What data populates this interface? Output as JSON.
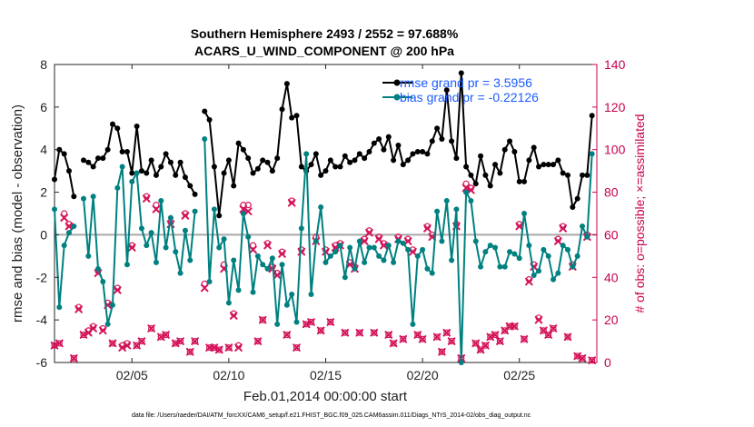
{
  "chart_data": {
    "type": "line",
    "title": [
      "Southern Hemisphere 2493 / 2552 = 97.688%",
      "ACARS_U_WIND_COMPONENT @ 200 hPa"
    ],
    "xlabel": "Feb.01,2014 00:00:00 start",
    "ylabel": "rmse and bias (model - observation)",
    "ylabel_right": "# of obs: o=possible; ×=assimilated",
    "footnote": "data file: /Users/raeder/DAI/ATM_forcXX/CAM6_setup/f.e21.FHIST_BGC.f09_025.CAM6assim.011/Diags_NTrS_2014-02/obs_diag_output.nc",
    "xlim": [
      1,
      29
    ],
    "ylim": [
      -6,
      8
    ],
    "ylim_right": [
      0,
      140
    ],
    "x_ticks": [
      5,
      10,
      15,
      20,
      25
    ],
    "x_tick_labels": [
      "02/05",
      "02/10",
      "02/15",
      "02/20",
      "02/25"
    ],
    "y_ticks": [
      -6,
      -4,
      -2,
      0,
      2,
      4,
      6,
      8
    ],
    "y_tick_labels": [
      "-6",
      "-4",
      "-2",
      "0",
      "2",
      "4",
      "6",
      "8"
    ],
    "y_ticks_right": [
      0,
      20,
      40,
      60,
      80,
      100,
      120,
      140
    ],
    "y_tick_labels_right": [
      "0",
      "20",
      "40",
      "60",
      "80",
      "100",
      "120",
      "140"
    ],
    "grid": false,
    "legend_position": "top-right",
    "colors": {
      "rmse": "#000000",
      "bias": "#008080",
      "obs": "#d4145a",
      "zero_line": "#a8a8a8",
      "legend_text": "#1a5cff",
      "right_axis": "#c8004f"
    },
    "series": [
      {
        "name": "rmse grand pr = 3.5956",
        "axis": "left",
        "x": [
          1.0,
          1.25,
          1.5,
          1.75,
          2.0,
          2.25,
          2.5,
          2.75,
          3.0,
          3.25,
          3.5,
          3.75,
          4.0,
          4.25,
          4.5,
          4.75,
          5.0,
          5.25,
          5.5,
          5.75,
          6.0,
          6.25,
          6.5,
          6.75,
          7.0,
          7.25,
          7.5,
          7.75,
          8.0,
          8.25,
          8.5,
          8.75,
          9.0,
          9.25,
          9.5,
          9.75,
          10.0,
          10.25,
          10.5,
          10.75,
          11.0,
          11.25,
          11.5,
          11.75,
          12.0,
          12.25,
          12.5,
          12.75,
          13.0,
          13.25,
          13.5,
          13.75,
          14.0,
          14.25,
          14.5,
          14.75,
          15.0,
          15.25,
          15.5,
          15.75,
          16.0,
          16.25,
          16.5,
          16.75,
          17.0,
          17.25,
          17.5,
          17.75,
          18.0,
          18.25,
          18.5,
          18.75,
          19.0,
          19.25,
          19.5,
          19.75,
          20.0,
          20.25,
          20.5,
          20.75,
          21.0,
          21.25,
          21.5,
          21.75,
          22.0,
          22.25,
          22.5,
          22.75,
          23.0,
          23.25,
          23.5,
          23.75,
          24.0,
          24.25,
          24.5,
          24.75,
          25.0,
          25.25,
          25.5,
          25.75,
          26.0,
          26.25,
          26.5,
          26.75,
          27.0,
          27.25,
          27.5,
          27.75,
          28.0,
          28.25,
          28.5,
          28.75
        ],
        "values": [
          2.6,
          4.0,
          3.8,
          3.0,
          1.8,
          null,
          3.5,
          3.4,
          3.2,
          3.6,
          3.6,
          4.0,
          5.2,
          5.0,
          3.9,
          3.9,
          2.9,
          5.1,
          3.0,
          2.9,
          3.5,
          2.8,
          3.2,
          3.8,
          3.4,
          2.8,
          3.4,
          2.7,
          2.3,
          1.9,
          null,
          5.8,
          5.4,
          3.2,
          0.9,
          2.9,
          3.5,
          2.3,
          4.3,
          4.0,
          3.6,
          2.9,
          3.1,
          3.5,
          3.4,
          3.0,
          3.6,
          5.9,
          7.1,
          5.5,
          5.6,
          3.2,
          3.0,
          3.3,
          3.8,
          2.8,
          3.0,
          3.5,
          3.2,
          3.2,
          3.7,
          3.4,
          3.5,
          3.8,
          3.6,
          3.9,
          4.3,
          4.5,
          4.0,
          4.6,
          3.5,
          4.2,
          3.3,
          3.5,
          3.8,
          3.9,
          3.9,
          3.8,
          4.4,
          5.0,
          4.5,
          6.8,
          4.4,
          3.6,
          7.6,
          3.2,
          2.8,
          2.4,
          3.7,
          2.8,
          2.3,
          3.3,
          2.9,
          4.0,
          4.4,
          3.9,
          2.5,
          2.5,
          3.5,
          4.1,
          3.2,
          3.3,
          3.3,
          3.3,
          3.5,
          2.9,
          2.8,
          1.3,
          1.7,
          2.8,
          2.8,
          5.6
        ]
      },
      {
        "name": "bias grand pr = -0.22126",
        "axis": "left",
        "x": [
          1.0,
          1.25,
          1.5,
          1.75,
          2.0,
          2.25,
          2.5,
          2.75,
          3.0,
          3.25,
          3.5,
          3.75,
          4.0,
          4.25,
          4.5,
          4.75,
          5.0,
          5.25,
          5.5,
          5.75,
          6.0,
          6.25,
          6.5,
          6.75,
          7.0,
          7.25,
          7.5,
          7.75,
          8.0,
          8.25,
          8.5,
          8.75,
          9.0,
          9.25,
          9.5,
          9.75,
          10.0,
          10.25,
          10.5,
          10.75,
          11.0,
          11.25,
          11.5,
          11.75,
          12.0,
          12.25,
          12.5,
          12.75,
          13.0,
          13.25,
          13.5,
          13.75,
          14.0,
          14.25,
          14.5,
          14.75,
          15.0,
          15.25,
          15.5,
          15.75,
          16.0,
          16.25,
          16.5,
          16.75,
          17.0,
          17.25,
          17.5,
          17.75,
          18.0,
          18.25,
          18.5,
          18.75,
          19.0,
          19.25,
          19.5,
          19.75,
          20.0,
          20.25,
          20.5,
          20.75,
          21.0,
          21.25,
          21.5,
          21.75,
          22.0,
          22.25,
          22.5,
          22.75,
          23.0,
          23.25,
          23.5,
          23.75,
          24.0,
          24.25,
          24.5,
          24.75,
          25.0,
          25.25,
          25.5,
          25.75,
          26.0,
          26.25,
          26.5,
          26.75,
          27.0,
          27.25,
          27.5,
          27.75,
          28.0,
          28.25,
          28.5,
          28.75
        ],
        "values": [
          1.2,
          -3.4,
          -0.5,
          0.1,
          0.4,
          null,
          1.7,
          -1.0,
          1.8,
          -1.6,
          -2.2,
          -4.2,
          -3.3,
          2.2,
          3.2,
          -1.4,
          2.5,
          2.9,
          0.3,
          -0.5,
          0.1,
          -1.3,
          1.6,
          -0.6,
          0.8,
          -0.8,
          -1.8,
          0.2,
          -1.2,
          1.1,
          null,
          4.5,
          -2.2,
          1.2,
          -0.6,
          -0.2,
          -3.2,
          -1.2,
          -2.6,
          1.0,
          -0.1,
          -2.7,
          -1.0,
          -1.4,
          -1.6,
          -1.1,
          -4.2,
          -1.4,
          -3.3,
          -2.8,
          -4.1,
          0.3,
          3.8,
          -2.8,
          -0.3,
          1.3,
          -1.3,
          -1.0,
          -0.8,
          -0.5,
          -2.0,
          -0.6,
          -1.6,
          -0.3,
          -1.3,
          -0.6,
          -0.6,
          -1.0,
          -1.2,
          -0.5,
          -1.3,
          -0.3,
          -0.4,
          -0.7,
          -4.2,
          -1.0,
          -0.7,
          -1.6,
          -1.8,
          1.1,
          -0.3,
          1.6,
          -1.2,
          1.2,
          -6.0,
          2.0,
          1.6,
          -0.3,
          -1.5,
          -0.8,
          -0.5,
          -0.6,
          -1.5,
          -1.5,
          -0.8,
          -0.9,
          -1.1,
          1.0,
          -0.5,
          -1.9,
          -1.7,
          -0.7,
          -1.0,
          -2.1,
          -1.8,
          -0.5,
          -0.7,
          -1.5,
          -1.0,
          0.4,
          -0.1,
          3.8
        ]
      },
      {
        "name": "obs possible (o)",
        "axis": "right",
        "marker": "o",
        "x": [
          1.0,
          1.25,
          1.5,
          1.75,
          2.0,
          2.25,
          2.5,
          2.75,
          3.0,
          3.25,
          3.5,
          3.75,
          4.0,
          4.25,
          4.5,
          4.75,
          5.0,
          5.25,
          5.5,
          5.75,
          6.0,
          6.25,
          6.5,
          6.75,
          7.0,
          7.25,
          7.5,
          7.75,
          8.0,
          8.25,
          8.5,
          8.75,
          9.0,
          9.25,
          9.5,
          9.75,
          10.0,
          10.25,
          10.5,
          10.75,
          11.0,
          11.25,
          11.5,
          11.75,
          12.0,
          12.25,
          12.5,
          12.75,
          13.0,
          13.25,
          13.5,
          13.75,
          14.0,
          14.25,
          14.5,
          14.75,
          15.0,
          15.25,
          15.5,
          15.75,
          16.0,
          16.25,
          16.5,
          16.75,
          17.0,
          17.25,
          17.5,
          17.75,
          18.0,
          18.25,
          18.5,
          18.75,
          19.0,
          19.25,
          19.5,
          19.75,
          20.0,
          20.25,
          20.5,
          20.75,
          21.0,
          21.25,
          21.5,
          21.75,
          22.0,
          22.25,
          22.5,
          22.75,
          23.0,
          23.25,
          23.5,
          23.75,
          24.0,
          24.25,
          24.5,
          24.75,
          25.0,
          25.25,
          25.5,
          25.75,
          26.0,
          26.25,
          26.5,
          26.75,
          27.0,
          27.25,
          27.5,
          27.75,
          28.0,
          28.25,
          28.5,
          28.75
        ],
        "values": [
          8,
          9,
          70,
          65,
          2,
          26,
          13,
          15,
          17,
          43,
          16,
          28,
          9,
          35,
          8,
          9,
          55,
          8,
          10,
          78,
          16,
          74,
          12,
          13,
          66,
          9,
          10,
          70,
          5,
          10,
          null,
          37,
          7,
          7,
          6,
          46,
          7,
          23,
          8,
          74,
          74,
          55,
          10,
          20,
          56,
          45,
          42,
          52,
          13,
          76,
          7,
          53,
          18,
          19,
          59,
          15,
          53,
          19,
          55,
          56,
          14,
          47,
          45,
          14,
          58,
          62,
          14,
          59,
          56,
          13,
          9,
          59,
          11,
          58,
          53,
          13,
          11,
          64,
          60,
          12,
          5,
          14,
          10,
          65,
          2,
          84,
          82,
          9,
          6,
          8,
          12,
          13,
          10,
          15,
          17,
          17,
          65,
          11,
          39,
          46,
          21,
          15,
          13,
          16,
          58,
          64,
          12,
          46,
          3,
          2,
          60,
          1
        ]
      },
      {
        "name": "obs assimilated (×)",
        "axis": "right",
        "marker": "x",
        "x": [
          1.0,
          1.25,
          1.5,
          1.75,
          2.0,
          2.25,
          2.5,
          2.75,
          3.0,
          3.25,
          3.5,
          3.75,
          4.0,
          4.25,
          4.5,
          4.75,
          5.0,
          5.25,
          5.5,
          5.75,
          6.0,
          6.25,
          6.5,
          6.75,
          7.0,
          7.25,
          7.5,
          7.75,
          8.0,
          8.25,
          8.5,
          8.75,
          9.0,
          9.25,
          9.5,
          9.75,
          10.0,
          10.25,
          10.5,
          10.75,
          11.0,
          11.25,
          11.5,
          11.75,
          12.0,
          12.25,
          12.5,
          12.75,
          13.0,
          13.25,
          13.5,
          13.75,
          14.0,
          14.25,
          14.5,
          14.75,
          15.0,
          15.25,
          15.5,
          15.75,
          16.0,
          16.25,
          16.5,
          16.75,
          17.0,
          17.25,
          17.5,
          17.75,
          18.0,
          18.25,
          18.5,
          18.75,
          19.0,
          19.25,
          19.5,
          19.75,
          20.0,
          20.25,
          20.5,
          20.75,
          21.0,
          21.25,
          21.5,
          21.75,
          22.0,
          22.25,
          22.5,
          22.75,
          23.0,
          23.25,
          23.5,
          23.75,
          24.0,
          24.25,
          24.5,
          24.75,
          25.0,
          25.25,
          25.5,
          25.75,
          26.0,
          26.25,
          26.5,
          26.75,
          27.0,
          27.25,
          27.5,
          27.75,
          28.0,
          28.25,
          28.5,
          28.75
        ],
        "values": [
          8,
          9,
          68,
          64,
          2,
          25,
          13,
          14,
          16,
          42,
          15,
          27,
          9,
          34,
          7,
          8,
          54,
          8,
          10,
          77,
          16,
          72,
          12,
          13,
          65,
          9,
          10,
          69,
          5,
          10,
          null,
          35,
          7,
          7,
          6,
          44,
          7,
          22,
          7,
          72,
          71,
          53,
          10,
          20,
          55,
          44,
          41,
          51,
          13,
          75,
          7,
          52,
          18,
          19,
          57,
          15,
          52,
          19,
          54,
          55,
          14,
          46,
          44,
          14,
          57,
          61,
          14,
          58,
          55,
          13,
          9,
          58,
          11,
          57,
          52,
          13,
          11,
          63,
          59,
          12,
          5,
          14,
          10,
          64,
          2,
          82,
          81,
          9,
          6,
          8,
          12,
          13,
          10,
          15,
          17,
          17,
          64,
          11,
          38,
          45,
          20,
          15,
          13,
          16,
          57,
          63,
          12,
          45,
          3,
          2,
          59,
          1
        ]
      }
    ]
  }
}
